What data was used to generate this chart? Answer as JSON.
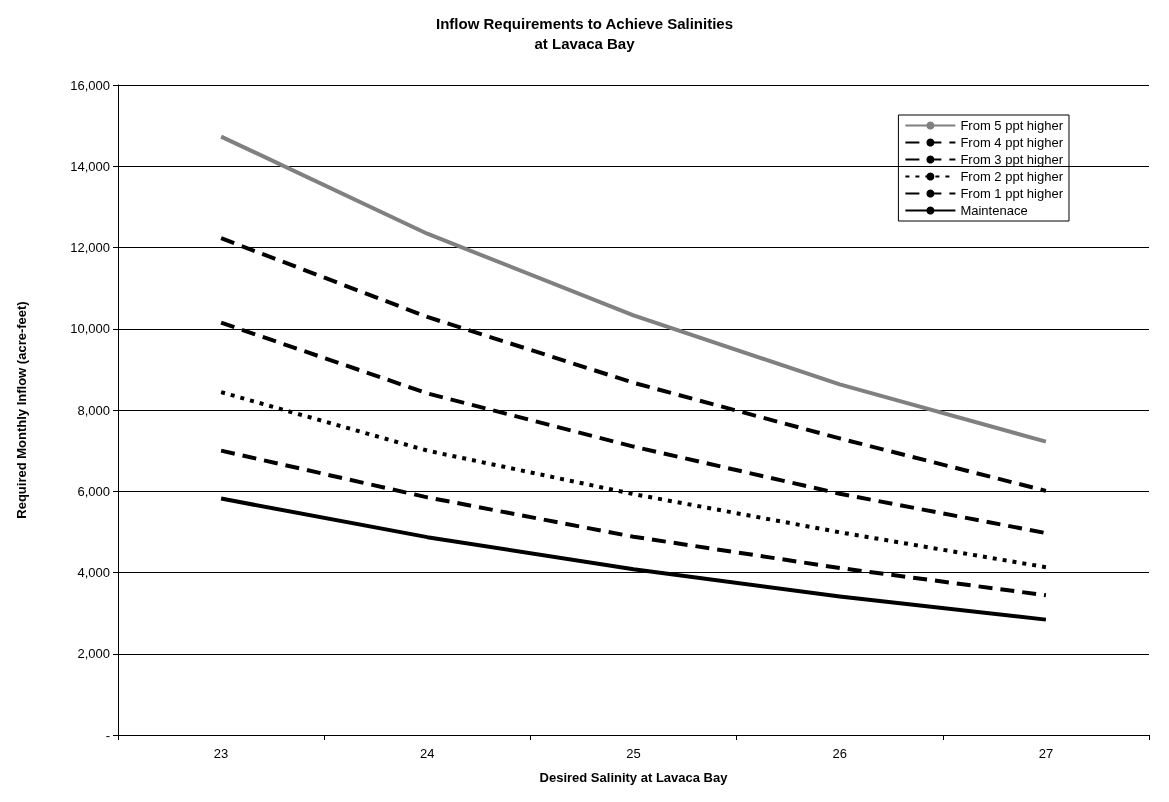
{
  "chart_data": {
    "type": "line",
    "title": "Inflow Requirements to Achieve Salinities\nat Lavaca Bay",
    "xlabel": "Desired Salinity at Lavaca Bay",
    "ylabel": "Required Monthly Inflow (acre-feet)",
    "categories": [
      "23",
      "24",
      "25",
      "26",
      "27"
    ],
    "series": [
      {
        "name": "From 5 ppt higher",
        "color": "#808080",
        "line_style": "solid",
        "values": [
          14730,
          12340,
          10330,
          8630,
          7220
        ]
      },
      {
        "name": "From 4 ppt higher",
        "color": "#000000",
        "line_style": "dashed",
        "values": [
          12230,
          10290,
          8670,
          7300,
          6010
        ]
      },
      {
        "name": "From 3 ppt higher",
        "color": "#000000",
        "line_style": "dashed",
        "values": [
          10150,
          8410,
          7100,
          5940,
          4970
        ]
      },
      {
        "name": "From 2 ppt higher",
        "color": "#000000",
        "line_style": "dotted",
        "values": [
          8440,
          7000,
          5930,
          4990,
          4130
        ]
      },
      {
        "name": "From 1 ppt higher",
        "color": "#000000",
        "line_style": "dashed",
        "values": [
          7000,
          5850,
          4880,
          4110,
          3440
        ]
      },
      {
        "name": "Maintenace",
        "color": "#000000",
        "line_style": "solid",
        "values": [
          5820,
          4870,
          4080,
          3410,
          2840
        ]
      }
    ],
    "ylim": [
      0,
      16000
    ],
    "yticks": [
      {
        "value": 0,
        "label": "-"
      },
      {
        "value": 2000,
        "label": "2,000"
      },
      {
        "value": 4000,
        "label": "4,000"
      },
      {
        "value": 6000,
        "label": "6,000"
      },
      {
        "value": 8000,
        "label": "8,000"
      },
      {
        "value": 10000,
        "label": "10,000"
      },
      {
        "value": 12000,
        "label": "12,000"
      },
      {
        "value": 14000,
        "label": "14,000"
      },
      {
        "value": 16000,
        "label": "16,000"
      }
    ],
    "grid": "y",
    "legend": "top right",
    "marker": "none"
  }
}
